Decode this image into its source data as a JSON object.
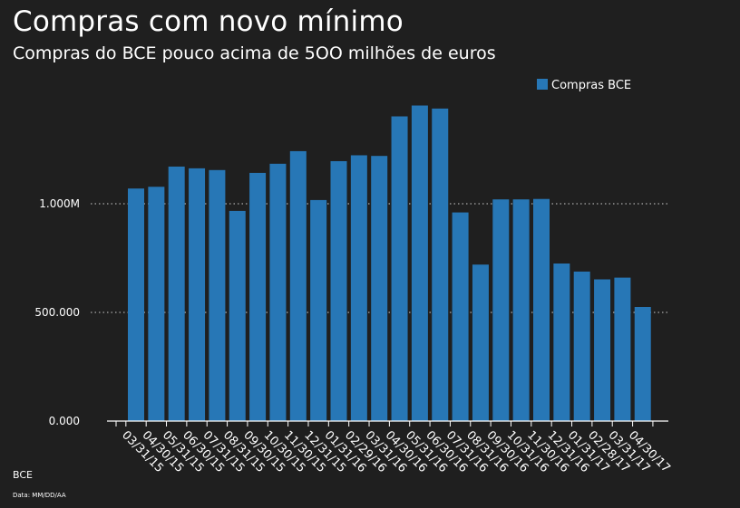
{
  "header": {
    "title": "Compras com novo mínimo",
    "subtitle": "Compras do BCE pouco acima de 5OO milhões de euros"
  },
  "footer": {
    "source": "BCE",
    "note": "Data: MM/DD/AA"
  },
  "colors": {
    "background": "#1f1f1f",
    "bar": "#2777b6",
    "text": "#ffffff",
    "gridline": "#cccccc"
  },
  "chart_data": {
    "type": "bar",
    "title": "Compras com novo mínimo",
    "subtitle": "Compras do BCE pouco acima de 5OO milhões de euros",
    "xlabel": "",
    "ylabel": "",
    "ylim": [
      0,
      1500000
    ],
    "yticks": [
      {
        "value": 0,
        "label": "0.000"
      },
      {
        "value": 500000,
        "label": "500.000"
      },
      {
        "value": 1000000,
        "label": "1.000M"
      }
    ],
    "grid": "dotted horizontal at y ticks",
    "legend": {
      "position": "top-right"
    },
    "categories": [
      "03/31/15",
      "04/30/15",
      "05/31/15",
      "06/30/15",
      "07/31/15",
      "08/31/15",
      "09/30/15",
      "10/30/15",
      "11/30/15",
      "12/31/15",
      "01/31/16",
      "02/29/16",
      "03/31/16",
      "04/30/16",
      "05/31/16",
      "06/30/16",
      "07/31/16",
      "08/31/16",
      "09/30/16",
      "10/31/16",
      "11/30/16",
      "12/31/16",
      "01/31/17",
      "02/28/17",
      "03/31/17",
      "04/30/17"
    ],
    "tick_labels": [
      "03/31/15",
      "04/30/15",
      "05/31/15",
      "06/30/15",
      "07/31/15",
      "08/31/15",
      "09/30/15",
      "10/30/15",
      "11/30/15",
      "12/31/15",
      "01/31/16",
      "02/29/16",
      "03/31/16",
      "04/30/16",
      "05/31/16",
      "06/30/16",
      "07/31/16",
      "08/31/16",
      "09/30/16",
      "10/31/16",
      "11/30/16",
      "12/31/16",
      "01/31/17",
      "02/28/17",
      "03/31/17",
      "04/30/17"
    ],
    "series": [
      {
        "name": "Compras BCE",
        "values": [
          1070000,
          1078000,
          1171000,
          1163000,
          1155000,
          967000,
          1142000,
          1184000,
          1242000,
          1017000,
          1196000,
          1223000,
          1220000,
          1402000,
          1452000,
          1438000,
          960000,
          720000,
          1020000,
          1020000,
          1022000,
          725000,
          688000,
          652000,
          660000,
          525000
        ]
      }
    ]
  }
}
